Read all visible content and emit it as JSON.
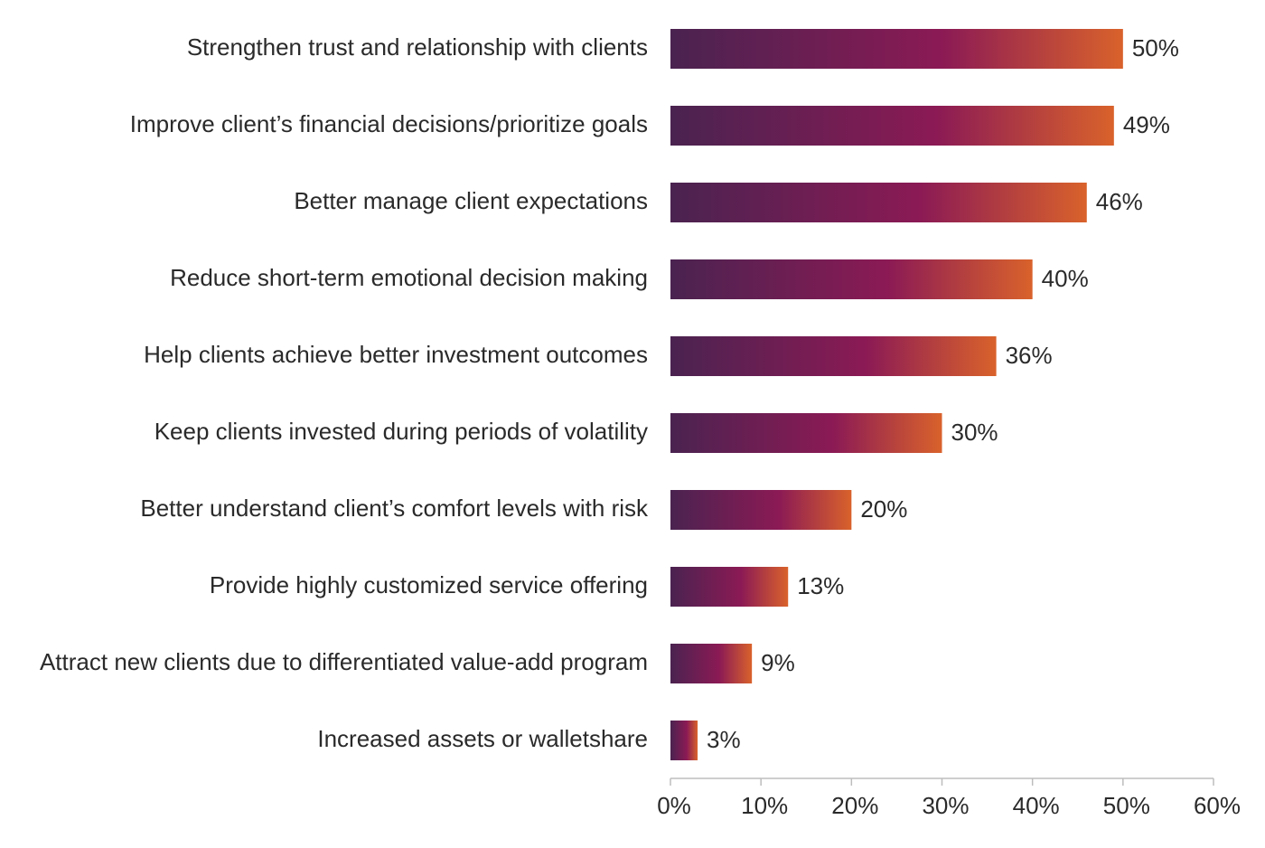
{
  "chart_data": {
    "type": "bar",
    "orientation": "horizontal",
    "categories": [
      "Strengthen trust and relationship with clients",
      "Improve client’s financial decisions/prioritize goals",
      "Better manage client expectations",
      "Reduce short-term emotional decision making",
      "Help clients achieve better investment outcomes",
      "Keep clients invested during periods of volatility",
      "Better understand client’s comfort levels  with risk",
      "Provide highly customized service offering",
      "Attract new clients due to differentiated value-add program",
      "Increased assets or walletshare"
    ],
    "values": [
      50,
      49,
      46,
      40,
      36,
      30,
      20,
      13,
      9,
      3
    ],
    "value_labels": [
      "50%",
      "49%",
      "46%",
      "40%",
      "36%",
      "30%",
      "20%",
      "13%",
      "9%",
      "3%"
    ],
    "xlim": [
      0,
      60
    ],
    "x_ticks": [
      "0%",
      "10%",
      "20%",
      "30%",
      "40%",
      "50%",
      "60%"
    ],
    "grid": false,
    "legend": "none",
    "colors": {
      "gradient_start": "#4a2350",
      "gradient_mid": "#8b1a55",
      "gradient_end": "#d9622b",
      "text": "#2a2a2a",
      "axis": "#bdbdbd"
    }
  }
}
